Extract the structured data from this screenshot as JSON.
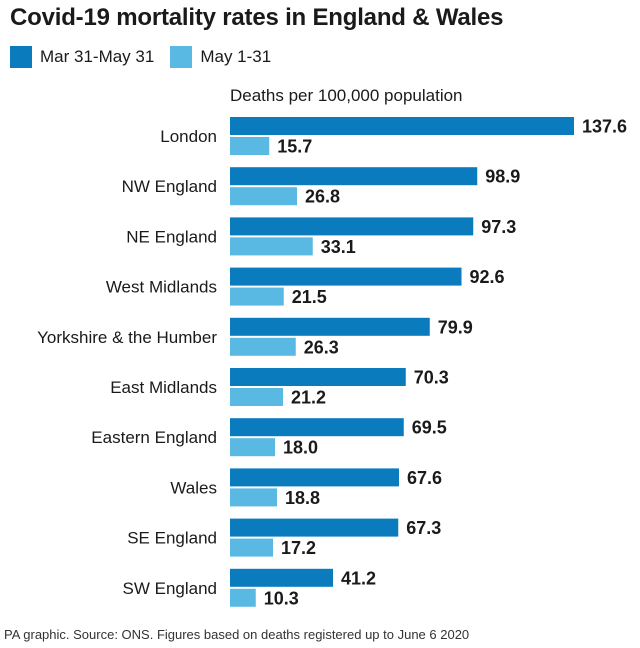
{
  "title": "Covid-19 mortality rates in England & Wales",
  "legend": [
    {
      "label": "Mar 31-May 31",
      "color": "#0a7bbd"
    },
    {
      "label": "May 1-31",
      "color": "#5ab9e3"
    }
  ],
  "source": "PA graphic. Source: ONS. Figures based on deaths registered up to June 6 2020",
  "chart_data": {
    "type": "bar",
    "orientation": "horizontal",
    "title": "Covid-19 mortality rates in England & Wales",
    "xlabel": "Deaths per 100,000 population",
    "ylabel": "",
    "categories": [
      "London",
      "NW England",
      "NE England",
      "West Midlands",
      "Yorkshire & the Humber",
      "East Midlands",
      "Eastern England",
      "Wales",
      "SE England",
      "SW England"
    ],
    "series": [
      {
        "name": "Mar 31-May 31",
        "color": "#0a7bbd",
        "values": [
          137.6,
          98.9,
          97.3,
          92.6,
          79.9,
          70.3,
          69.5,
          67.6,
          67.3,
          41.2
        ]
      },
      {
        "name": "May 1-31",
        "color": "#5ab9e3",
        "values": [
          15.7,
          26.8,
          33.1,
          21.5,
          26.3,
          21.2,
          18.0,
          18.8,
          17.2,
          10.3
        ]
      }
    ],
    "value_labels": [
      [
        "137.6",
        "98.9",
        "97.3",
        "92.6",
        "79.9",
        "70.3",
        "69.5",
        "67.6",
        "67.3",
        "41.2"
      ],
      [
        "15.7",
        "26.8",
        "33.1",
        "21.5",
        "26.3",
        "21.2",
        "18.0",
        "18.8",
        "17.2",
        "10.3"
      ]
    ],
    "xlim": [
      0,
      137.6
    ],
    "grid": false,
    "legend_position": "top-left"
  }
}
